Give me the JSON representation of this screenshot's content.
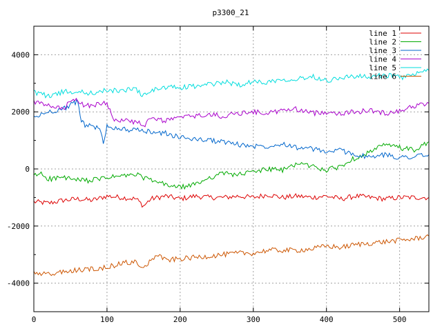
{
  "chart_data": {
    "type": "line",
    "title": "p3300_21",
    "xlabel": "",
    "ylabel": "",
    "xlim": [
      0,
      540
    ],
    "ylim": [
      -5000,
      5000
    ],
    "xticks": [
      0,
      100,
      200,
      300,
      400,
      500
    ],
    "yticks": [
      -4000,
      -2000,
      0,
      2000,
      4000
    ],
    "grid": true,
    "legend_position": "top-right",
    "series": [
      {
        "name": "line 1",
        "color": "#dd0000",
        "x": [
          0,
          20,
          40,
          60,
          80,
          100,
          120,
          140,
          150,
          160,
          180,
          200,
          220,
          240,
          260,
          280,
          300,
          320,
          340,
          360,
          380,
          400,
          420,
          440,
          460,
          480,
          500,
          520,
          540
        ],
        "y": [
          -1150,
          -1200,
          -1100,
          -1050,
          -1100,
          -950,
          -1000,
          -1050,
          -1300,
          -1050,
          -950,
          -1050,
          -950,
          -1000,
          -1000,
          -950,
          -1000,
          -900,
          -1000,
          -950,
          -1000,
          -950,
          -1050,
          -950,
          -1000,
          -1050,
          -1000,
          -1000,
          -1000
        ]
      },
      {
        "name": "line 2",
        "color": "#00aa00",
        "x": [
          0,
          10,
          20,
          40,
          60,
          80,
          100,
          120,
          140,
          160,
          180,
          200,
          220,
          240,
          260,
          280,
          300,
          320,
          340,
          360,
          380,
          400,
          420,
          440,
          460,
          480,
          500,
          520,
          540
        ],
        "y": [
          -250,
          -150,
          -350,
          -300,
          -400,
          -400,
          -300,
          -250,
          -200,
          -400,
          -550,
          -650,
          -550,
          -300,
          -150,
          -200,
          -100,
          0,
          -50,
          200,
          100,
          -50,
          100,
          400,
          600,
          850,
          750,
          650,
          950
        ]
      },
      {
        "name": "line 3",
        "color": "#0066cc",
        "x": [
          0,
          20,
          40,
          55,
          60,
          65,
          70,
          80,
          90,
          95,
          100,
          120,
          140,
          160,
          180,
          200,
          220,
          240,
          260,
          280,
          300,
          320,
          340,
          360,
          380,
          400,
          420,
          440,
          460,
          480,
          500,
          520,
          540
        ],
        "y": [
          1800,
          2000,
          2100,
          2300,
          2350,
          1700,
          1550,
          1500,
          1400,
          900,
          1500,
          1400,
          1350,
          1300,
          1250,
          1100,
          1050,
          1000,
          950,
          850,
          800,
          800,
          900,
          750,
          700,
          600,
          650,
          500,
          400,
          500,
          400,
          450,
          500
        ]
      },
      {
        "name": "line 4",
        "color": "#aa00cc",
        "x": [
          0,
          20,
          40,
          50,
          60,
          70,
          80,
          100,
          110,
          120,
          140,
          150,
          160,
          180,
          200,
          220,
          240,
          260,
          280,
          300,
          320,
          340,
          360,
          380,
          400,
          420,
          440,
          460,
          480,
          500,
          520,
          540
        ],
        "y": [
          2350,
          2200,
          2100,
          2350,
          2400,
          2200,
          2250,
          2300,
          1750,
          1700,
          1650,
          1500,
          1750,
          1700,
          1800,
          1850,
          1900,
          1850,
          1950,
          2000,
          1950,
          2050,
          2100,
          1950,
          2000,
          1950,
          2000,
          2050,
          1950,
          2050,
          2200,
          2300
        ]
      },
      {
        "name": "line 5",
        "color": "#00dddd",
        "x": [
          0,
          20,
          40,
          60,
          80,
          100,
          120,
          140,
          150,
          160,
          180,
          200,
          220,
          240,
          260,
          280,
          300,
          320,
          340,
          360,
          380,
          400,
          420,
          440,
          460,
          480,
          500,
          520,
          540
        ],
        "y": [
          2700,
          2550,
          2700,
          2700,
          2650,
          2750,
          2750,
          2800,
          2550,
          2750,
          2850,
          2850,
          2900,
          2950,
          3050,
          2950,
          3050,
          3050,
          3150,
          3150,
          3250,
          3100,
          3200,
          3250,
          3200,
          3300,
          3200,
          3300,
          3450
        ]
      },
      {
        "name": "line 6",
        "color": "#cc5500",
        "x": [
          0,
          20,
          40,
          60,
          80,
          100,
          120,
          140,
          150,
          160,
          170,
          180,
          200,
          220,
          240,
          260,
          280,
          300,
          320,
          340,
          360,
          380,
          400,
          420,
          440,
          460,
          480,
          500,
          520,
          540
        ],
        "y": [
          -3650,
          -3700,
          -3600,
          -3550,
          -3500,
          -3450,
          -3300,
          -3250,
          -3500,
          -3200,
          -3000,
          -3200,
          -3150,
          -3100,
          -3050,
          -3000,
          -2950,
          -2950,
          -2850,
          -2850,
          -2850,
          -2800,
          -2700,
          -2750,
          -2650,
          -2600,
          -2550,
          -2500,
          -2450,
          -2350
        ]
      }
    ]
  }
}
